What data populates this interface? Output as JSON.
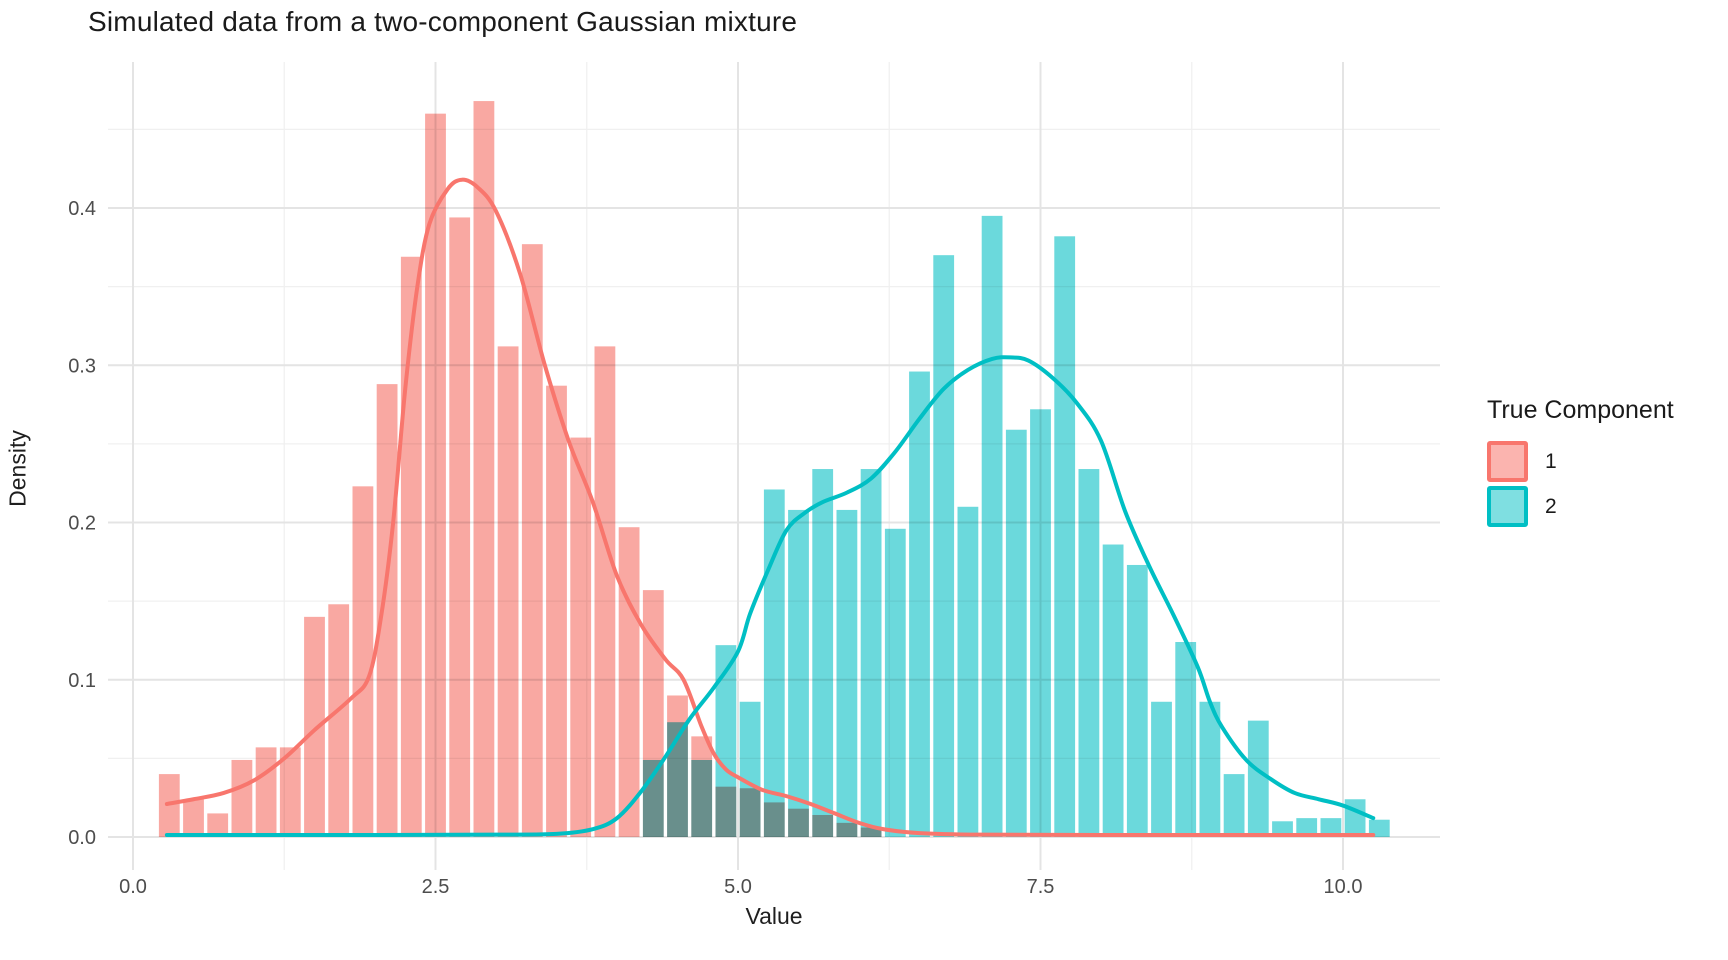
{
  "title": "Simulated data from a two-component Gaussian mixture",
  "axes": {
    "x": {
      "title": "Value",
      "tick_labels": [
        "0.0",
        "2.5",
        "5.0",
        "7.5",
        "10.0"
      ],
      "tick_values": [
        0,
        2.5,
        5,
        7.5,
        10
      ],
      "minor_values": [
        1.25,
        3.75,
        6.25,
        8.75
      ]
    },
    "y": {
      "title": "Density",
      "tick_labels": [
        "0.0",
        "0.1",
        "0.2",
        "0.3",
        "0.4"
      ],
      "tick_values": [
        0,
        0.1,
        0.2,
        0.3,
        0.4
      ],
      "minor_values": [
        0.05,
        0.15,
        0.25,
        0.35,
        0.45
      ]
    }
  },
  "legend": {
    "title": "True Component",
    "items": [
      {
        "label": "1",
        "border_color": "#F8766D",
        "fill_color": "rgba(248,118,109,0.55)"
      },
      {
        "label": "2",
        "border_color": "#00BFC4",
        "fill_color": "rgba(0,191,196,0.50)"
      }
    ]
  },
  "colors": {
    "grid_major": "#E4E4E4",
    "grid_minor": "#F0F0F0",
    "tick_text": "#4D4D4D"
  },
  "chart_data": {
    "type": "histogram_with_density_overlay",
    "title": "Simulated data from a two-component Gaussian mixture",
    "xlabel": "Value",
    "ylabel": "Density",
    "legend_title": "True Component",
    "legend_position": "right",
    "grid": true,
    "xlim": [
      -0.2,
      10.75
    ],
    "ylim": [
      0,
      0.49
    ],
    "bin_width": 0.2,
    "series": [
      {
        "name": "1",
        "bar_fill": "#F9A8A2",
        "line_color": "#F8766D",
        "bins": [
          [
            0.2,
            0.04
          ],
          [
            0.4,
            0.024
          ],
          [
            0.6,
            0.015
          ],
          [
            0.8,
            0.049
          ],
          [
            1.0,
            0.057
          ],
          [
            1.2,
            0.057
          ],
          [
            1.4,
            0.14
          ],
          [
            1.6,
            0.148
          ],
          [
            1.8,
            0.223
          ],
          [
            2.0,
            0.288
          ],
          [
            2.2,
            0.369
          ],
          [
            2.4,
            0.46
          ],
          [
            2.6,
            0.394
          ],
          [
            2.8,
            0.468
          ],
          [
            3.0,
            0.312
          ],
          [
            3.2,
            0.377
          ],
          [
            3.4,
            0.287
          ],
          [
            3.6,
            0.254
          ],
          [
            3.8,
            0.312
          ],
          [
            4.0,
            0.197
          ],
          [
            4.2,
            0.157
          ],
          [
            4.4,
            0.09
          ],
          [
            4.6,
            0.064
          ],
          [
            4.8,
            0.032
          ],
          [
            5.0,
            0.031
          ],
          [
            5.2,
            0.022
          ],
          [
            5.4,
            0.018
          ],
          [
            5.6,
            0.014
          ],
          [
            5.8,
            0.009
          ],
          [
            6.0,
            0.006
          ]
        ],
        "density_curve": [
          [
            0.28,
            0.021
          ],
          [
            0.5,
            0.024
          ],
          [
            0.75,
            0.028
          ],
          [
            1.0,
            0.036
          ],
          [
            1.25,
            0.05
          ],
          [
            1.5,
            0.068
          ],
          [
            1.8,
            0.088
          ],
          [
            1.95,
            0.102
          ],
          [
            2.05,
            0.14
          ],
          [
            2.15,
            0.2
          ],
          [
            2.25,
            0.285
          ],
          [
            2.35,
            0.35
          ],
          [
            2.45,
            0.39
          ],
          [
            2.6,
            0.412
          ],
          [
            2.72,
            0.418
          ],
          [
            2.85,
            0.413
          ],
          [
            3.0,
            0.398
          ],
          [
            3.2,
            0.358
          ],
          [
            3.4,
            0.301
          ],
          [
            3.6,
            0.252
          ],
          [
            3.8,
            0.213
          ],
          [
            4.0,
            0.166
          ],
          [
            4.2,
            0.135
          ],
          [
            4.4,
            0.113
          ],
          [
            4.55,
            0.1
          ],
          [
            4.7,
            0.07
          ],
          [
            4.8,
            0.053
          ],
          [
            4.9,
            0.043
          ],
          [
            5.0,
            0.038
          ],
          [
            5.2,
            0.03
          ],
          [
            5.4,
            0.026
          ],
          [
            5.6,
            0.021
          ],
          [
            5.8,
            0.015
          ],
          [
            6.0,
            0.009
          ],
          [
            6.2,
            0.005
          ],
          [
            6.5,
            0.0025
          ],
          [
            7.0,
            0.0015
          ],
          [
            8.0,
            0.0013
          ],
          [
            9.0,
            0.0013
          ],
          [
            10.25,
            0.0013
          ]
        ]
      },
      {
        "name": "2",
        "bar_fill": "#6BD9DC",
        "line_color": "#00BFC4",
        "bins": [
          [
            4.2,
            0.049
          ],
          [
            4.4,
            0.073
          ],
          [
            4.6,
            0.049
          ],
          [
            4.8,
            0.122
          ],
          [
            5.0,
            0.086
          ],
          [
            5.2,
            0.221
          ],
          [
            5.4,
            0.208
          ],
          [
            5.6,
            0.234
          ],
          [
            5.8,
            0.208
          ],
          [
            6.0,
            0.234
          ],
          [
            6.2,
            0.196
          ],
          [
            6.4,
            0.296
          ],
          [
            6.6,
            0.37
          ],
          [
            6.8,
            0.21
          ],
          [
            7.0,
            0.395
          ],
          [
            7.2,
            0.259
          ],
          [
            7.4,
            0.272
          ],
          [
            7.6,
            0.382
          ],
          [
            7.8,
            0.234
          ],
          [
            8.0,
            0.186
          ],
          [
            8.2,
            0.173
          ],
          [
            8.4,
            0.086
          ],
          [
            8.6,
            0.124
          ],
          [
            8.8,
            0.086
          ],
          [
            9.0,
            0.04
          ],
          [
            9.2,
            0.074
          ],
          [
            9.4,
            0.01
          ],
          [
            9.6,
            0.012
          ],
          [
            9.8,
            0.012
          ],
          [
            10.0,
            0.024
          ],
          [
            10.2,
            0.011
          ]
        ],
        "density_curve": [
          [
            0.28,
            0.0013
          ],
          [
            1.0,
            0.0013
          ],
          [
            2.0,
            0.0013
          ],
          [
            3.0,
            0.0015
          ],
          [
            3.5,
            0.002
          ],
          [
            3.8,
            0.005
          ],
          [
            4.0,
            0.012
          ],
          [
            4.2,
            0.029
          ],
          [
            4.4,
            0.051
          ],
          [
            4.6,
            0.075
          ],
          [
            4.8,
            0.095
          ],
          [
            5.0,
            0.118
          ],
          [
            5.1,
            0.142
          ],
          [
            5.25,
            0.17
          ],
          [
            5.4,
            0.195
          ],
          [
            5.55,
            0.206
          ],
          [
            5.7,
            0.213
          ],
          [
            5.9,
            0.219
          ],
          [
            6.1,
            0.228
          ],
          [
            6.3,
            0.245
          ],
          [
            6.5,
            0.266
          ],
          [
            6.7,
            0.285
          ],
          [
            6.9,
            0.297
          ],
          [
            7.1,
            0.304
          ],
          [
            7.25,
            0.305
          ],
          [
            7.4,
            0.303
          ],
          [
            7.6,
            0.292
          ],
          [
            7.8,
            0.276
          ],
          [
            8.0,
            0.252
          ],
          [
            8.2,
            0.207
          ],
          [
            8.4,
            0.172
          ],
          [
            8.6,
            0.141
          ],
          [
            8.8,
            0.108
          ],
          [
            8.9,
            0.086
          ],
          [
            9.0,
            0.07
          ],
          [
            9.2,
            0.049
          ],
          [
            9.4,
            0.037
          ],
          [
            9.6,
            0.028
          ],
          [
            9.8,
            0.024
          ],
          [
            10.0,
            0.02
          ],
          [
            10.25,
            0.012
          ]
        ]
      }
    ]
  }
}
